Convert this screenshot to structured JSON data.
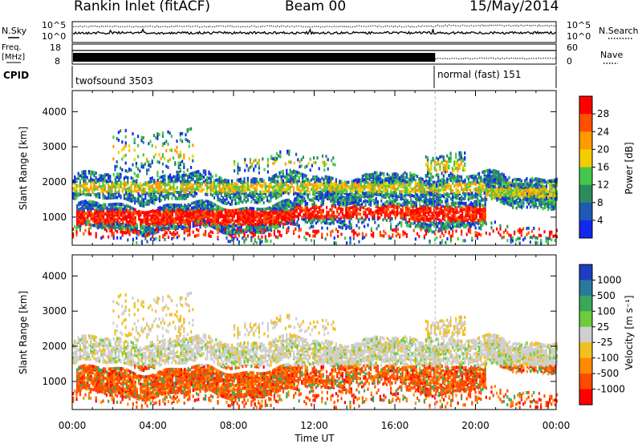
{
  "header": {
    "station": "Rankin Inlet (fitACF)",
    "beam": "Beam 00",
    "date": "15/May/2014"
  },
  "strips": {
    "nsky_label": "N.Sky",
    "nsearch_label": "N.Search",
    "noise_ticks_left": [
      "10^5",
      "10^0"
    ],
    "noise_ticks_right": [
      "10^5",
      "10^0"
    ],
    "freq_label_top": "Freq.",
    "freq_label_bottom": "[MHz]",
    "freq_ticks": [
      "18",
      "8"
    ],
    "nave_label": "Nave",
    "nave_ticks": [
      "60",
      "0"
    ],
    "cpid_label": "CPID",
    "cpid_left": "twofsound 3503",
    "cpid_right": "normal (fast) 151"
  },
  "chart_data": [
    {
      "type": "heatmap",
      "title": "",
      "ylabel": "Slant Range [km]",
      "xlabel": "",
      "ylim": [
        200,
        4600
      ],
      "yticks": [
        "1000",
        "2000",
        "3000",
        "4000"
      ],
      "xlim_hours": [
        0,
        24
      ],
      "colorbar_label": "Power [dB]",
      "colorbar_ticks": [
        "28",
        "24",
        "20",
        "16",
        "12",
        "8",
        "4"
      ],
      "colorbar_colors": [
        "#ff0000",
        "#ff5000",
        "#ff9a00",
        "#f5cc00",
        "#44c84a",
        "#2a8c5c",
        "#1c5ab5",
        "#1028f0"
      ]
    },
    {
      "type": "heatmap",
      "title": "",
      "ylabel": "Slant Range [km]",
      "xlabel": "Time UT",
      "ylim": [
        200,
        4600
      ],
      "yticks": [
        "1000",
        "2000",
        "3000",
        "4000"
      ],
      "xticks": [
        "00:00",
        "04:00",
        "08:00",
        "12:00",
        "16:00",
        "20:00",
        "00:00"
      ],
      "xlim_hours": [
        0,
        24
      ],
      "colorbar_label": "Velocity [m s⁻¹]",
      "colorbar_ticks": [
        "1000",
        "500",
        "100",
        "25",
        "-25",
        "-100",
        "-500",
        "-1000"
      ],
      "colorbar_colors": [
        "#1a3ec0",
        "#2a7aa0",
        "#3aa85a",
        "#6ccc3a",
        "#cfcfcf",
        "#f0c020",
        "#ff8a00",
        "#ff4a00",
        "#ff0000"
      ]
    }
  ],
  "cpid_change_hour": 18
}
